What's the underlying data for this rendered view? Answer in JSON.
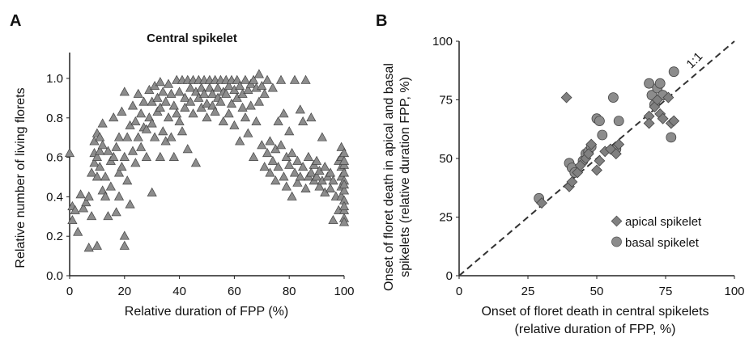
{
  "chart_data": [
    {
      "panel": "A",
      "type": "scatter",
      "title": "Central spikelet",
      "xlabel": "Relative duration of FPP (%)",
      "ylabel": "Relative number of living florets",
      "xlim": [
        0,
        100
      ],
      "ylim": [
        0,
        1.0
      ],
      "xticks": [
        "0",
        "20",
        "40",
        "60",
        "80",
        "100"
      ],
      "yticks": [
        "0.0",
        "0.2",
        "0.4",
        "0.6",
        "0.8",
        "1.0"
      ],
      "marker": "triangle",
      "color": "#8c8c8c",
      "grid": false,
      "series": [
        {
          "points": [
            [
              0,
              0.62
            ],
            [
              1,
              0.35
            ],
            [
              1,
              0.28
            ],
            [
              2,
              0.33
            ],
            [
              3,
              0.22
            ],
            [
              4,
              0.41
            ],
            [
              5,
              0.34
            ],
            [
              6,
              0.37
            ],
            [
              7,
              0.4
            ],
            [
              7,
              0.14
            ],
            [
              8,
              0.3
            ],
            [
              8,
              0.52
            ],
            [
              9,
              0.57
            ],
            [
              9,
              0.62
            ],
            [
              9,
              0.68
            ],
            [
              10,
              0.15
            ],
            [
              10,
              0.5
            ],
            [
              10,
              0.6
            ],
            [
              10,
              0.72
            ],
            [
              11,
              0.7
            ],
            [
              11,
              0.63
            ],
            [
              11,
              0.55
            ],
            [
              12,
              0.66
            ],
            [
              12,
              0.43
            ],
            [
              12,
              0.77
            ],
            [
              13,
              0.5
            ],
            [
              13,
              0.4
            ],
            [
              14,
              0.3
            ],
            [
              14,
              0.63
            ],
            [
              15,
              0.45
            ],
            [
              15,
              0.58
            ],
            [
              16,
              0.8
            ],
            [
              16,
              0.6
            ],
            [
              17,
              0.32
            ],
            [
              17,
              0.65
            ],
            [
              18,
              0.52
            ],
            [
              18,
              0.4
            ],
            [
              18,
              0.7
            ],
            [
              19,
              0.55
            ],
            [
              19,
              0.83
            ],
            [
              20,
              0.93
            ],
            [
              20,
              0.15
            ],
            [
              20,
              0.6
            ],
            [
              20,
              0.2
            ],
            [
              21,
              0.7
            ],
            [
              21,
              0.48
            ],
            [
              22,
              0.76
            ],
            [
              22,
              0.36
            ],
            [
              23,
              0.86
            ],
            [
              23,
              0.63
            ],
            [
              24,
              0.78
            ],
            [
              24,
              0.57
            ],
            [
              25,
              0.92
            ],
            [
              25,
              0.7
            ],
            [
              26,
              0.82
            ],
            [
              26,
              0.65
            ],
            [
              27,
              0.88
            ],
            [
              27,
              0.75
            ],
            [
              28,
              0.74
            ],
            [
              28,
              0.6
            ],
            [
              29,
              0.94
            ],
            [
              29,
              0.8
            ],
            [
              30,
              0.88
            ],
            [
              30,
              0.77
            ],
            [
              30,
              0.42
            ],
            [
              31,
              0.96
            ],
            [
              31,
              0.7
            ],
            [
              32,
              0.9
            ],
            [
              32,
              0.83
            ],
            [
              33,
              0.98
            ],
            [
              33,
              0.85
            ],
            [
              33,
              0.6
            ],
            [
              34,
              0.93
            ],
            [
              34,
              0.73
            ],
            [
              35,
              0.88
            ],
            [
              35,
              0.68
            ],
            [
              36,
              0.97
            ],
            [
              36,
              0.8
            ],
            [
              37,
              0.92
            ],
            [
              37,
              0.7
            ],
            [
              38,
              0.86
            ],
            [
              38,
              0.6
            ],
            [
              39,
              0.99
            ],
            [
              39,
              0.82
            ],
            [
              40,
              0.93
            ],
            [
              40,
              0.78
            ],
            [
              41,
              0.99
            ],
            [
              41,
              0.73
            ],
            [
              42,
              0.9
            ],
            [
              42,
              0.85
            ],
            [
              43,
              0.99
            ],
            [
              43,
              0.64
            ],
            [
              44,
              0.95
            ],
            [
              44,
              0.88
            ],
            [
              45,
              0.99
            ],
            [
              45,
              0.82
            ],
            [
              46,
              0.93
            ],
            [
              46,
              0.57
            ],
            [
              47,
              0.99
            ],
            [
              47,
              0.9
            ],
            [
              48,
              0.95
            ],
            [
              48,
              0.85
            ],
            [
              49,
              0.99
            ],
            [
              49,
              0.92
            ],
            [
              50,
              0.87
            ],
            [
              50,
              0.8
            ],
            [
              51,
              0.99
            ],
            [
              51,
              0.95
            ],
            [
              52,
              0.92
            ],
            [
              52,
              0.86
            ],
            [
              53,
              0.99
            ],
            [
              53,
              0.83
            ],
            [
              54,
              0.95
            ],
            [
              54,
              0.9
            ],
            [
              55,
              0.99
            ],
            [
              55,
              0.88
            ],
            [
              56,
              0.93
            ],
            [
              56,
              0.78
            ],
            [
              57,
              0.99
            ],
            [
              57,
              0.92
            ],
            [
              58,
              0.96
            ],
            [
              58,
              0.82
            ],
            [
              59,
              0.99
            ],
            [
              59,
              0.87
            ],
            [
              60,
              0.94
            ],
            [
              60,
              0.76
            ],
            [
              61,
              0.99
            ],
            [
              61,
              0.9
            ],
            [
              62,
              0.96
            ],
            [
              62,
              0.68
            ],
            [
              63,
              0.92
            ],
            [
              63,
              0.85
            ],
            [
              64,
              0.99
            ],
            [
              64,
              0.8
            ],
            [
              65,
              0.94
            ],
            [
              65,
              0.72
            ],
            [
              66,
              0.97
            ],
            [
              66,
              0.86
            ],
            [
              67,
              0.99
            ],
            [
              67,
              0.6
            ],
            [
              68,
              0.95
            ],
            [
              68,
              0.78
            ],
            [
              69,
              1.02
            ],
            [
              69,
              0.88
            ],
            [
              70,
              0.96
            ],
            [
              70,
              0.66
            ],
            [
              71,
              0.92
            ],
            [
              71,
              0.55
            ],
            [
              72,
              0.99
            ],
            [
              72,
              0.62
            ],
            [
              73,
              0.68
            ],
            [
              73,
              0.52
            ],
            [
              74,
              0.95
            ],
            [
              74,
              0.58
            ],
            [
              75,
              0.64
            ],
            [
              75,
              0.48
            ],
            [
              76,
              0.78
            ],
            [
              76,
              0.55
            ],
            [
              77,
              0.99
            ],
            [
              77,
              0.66
            ],
            [
              78,
              0.82
            ],
            [
              78,
              0.5
            ],
            [
              79,
              0.6
            ],
            [
              79,
              0.45
            ],
            [
              80,
              0.56
            ],
            [
              80,
              0.73
            ],
            [
              81,
              0.62
            ],
            [
              81,
              0.4
            ],
            [
              82,
              0.52
            ],
            [
              82,
              0.99
            ],
            [
              83,
              0.58
            ],
            [
              83,
              0.47
            ],
            [
              84,
              0.84
            ],
            [
              84,
              0.5
            ],
            [
              85,
              0.55
            ],
            [
              85,
              0.78
            ],
            [
              86,
              0.99
            ],
            [
              86,
              0.44
            ],
            [
              87,
              0.6
            ],
            [
              87,
              0.5
            ],
            [
              88,
              0.52
            ],
            [
              88,
              0.8
            ],
            [
              89,
              0.48
            ],
            [
              89,
              0.56
            ],
            [
              90,
              0.58
            ],
            [
              90,
              0.5
            ],
            [
              91,
              0.45
            ],
            [
              91,
              0.53
            ],
            [
              92,
              0.7
            ],
            [
              92,
              0.48
            ],
            [
              93,
              0.55
            ],
            [
              93,
              0.42
            ],
            [
              94,
              0.5
            ],
            [
              95,
              0.44
            ],
            [
              95,
              0.52
            ],
            [
              96,
              0.28
            ],
            [
              96,
              0.48
            ],
            [
              97,
              0.4
            ],
            [
              98,
              0.33
            ],
            [
              98,
              0.58
            ],
            [
              99,
              0.65
            ],
            [
              99,
              0.6
            ],
            [
              99,
              0.55
            ],
            [
              99,
              0.5
            ],
            [
              99,
              0.45
            ],
            [
              99,
              0.4
            ],
            [
              100,
              0.62
            ],
            [
              100,
              0.56
            ],
            [
              100,
              0.52
            ],
            [
              100,
              0.48
            ],
            [
              100,
              0.43
            ],
            [
              100,
              0.38
            ],
            [
              100,
              0.33
            ],
            [
              100,
              0.29
            ],
            [
              100,
              0.27
            ],
            [
              100,
              0.58
            ],
            [
              100,
              0.46
            ],
            [
              100,
              0.35
            ]
          ]
        }
      ]
    },
    {
      "panel": "B",
      "type": "scatter",
      "xlabel": "Onset of floret death in central spikelets",
      "xlabel2": "(relative duration of FPP, %)",
      "ylabel": "Onset of floret death in apical and basal",
      "ylabel2": "spikelets (relative duration FPP, %)",
      "xlim": [
        0,
        100
      ],
      "ylim": [
        0,
        100
      ],
      "xticks": [
        "0",
        "25",
        "50",
        "75",
        "100"
      ],
      "yticks": [
        "0",
        "25",
        "50",
        "75",
        "100"
      ],
      "reference_line_label": "1:1",
      "grid": false,
      "legend_position": "lower-right",
      "series": [
        {
          "name": "apical spikelet",
          "marker": "diamond",
          "color": "#808080",
          "points": [
            [
              30,
              31
            ],
            [
              39,
              76
            ],
            [
              40,
              38
            ],
            [
              41,
              40
            ],
            [
              43,
              44
            ],
            [
              44,
              47
            ],
            [
              46,
              50
            ],
            [
              47,
              52
            ],
            [
              48,
              56
            ],
            [
              50,
              45
            ],
            [
              51,
              49
            ],
            [
              53,
              53
            ],
            [
              55,
              54
            ],
            [
              57,
              52
            ],
            [
              58,
              56
            ],
            [
              69,
              68
            ],
            [
              69,
              65
            ],
            [
              71,
              72
            ],
            [
              72,
              75
            ],
            [
              73,
              69
            ],
            [
              74,
              67
            ],
            [
              76,
              76
            ],
            [
              77,
              65
            ],
            [
              78,
              66
            ]
          ]
        },
        {
          "name": "basal spikelet",
          "marker": "circle",
          "color": "#8c8c8c",
          "points": [
            [
              29,
              33
            ],
            [
              40,
              48
            ],
            [
              41,
              46
            ],
            [
              42,
              44
            ],
            [
              45,
              49
            ],
            [
              46,
              52
            ],
            [
              47,
              53
            ],
            [
              48,
              55
            ],
            [
              50,
              67
            ],
            [
              51,
              66
            ],
            [
              52,
              60
            ],
            [
              56,
              76
            ],
            [
              57,
              54
            ],
            [
              58,
              66
            ],
            [
              69,
              82
            ],
            [
              70,
              77
            ],
            [
              71,
              73
            ],
            [
              72,
              80
            ],
            [
              73,
              82
            ],
            [
              74,
              77
            ],
            [
              77,
              59
            ],
            [
              78,
              87
            ]
          ]
        }
      ]
    }
  ]
}
